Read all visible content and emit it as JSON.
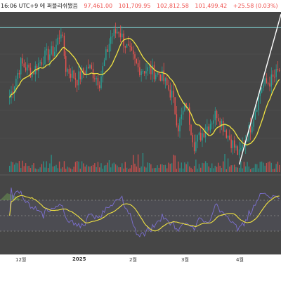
{
  "header": {
    "timestamp_text": "16:06 UTC+9 에 퍼블리쉬됐음",
    "ohlc": [
      "97,461.00",
      "101,709.95",
      "102,812.58",
      "101,499.42",
      "+25.58 (0.03%)"
    ]
  },
  "colors": {
    "background": "#464646",
    "up": "#26a69a",
    "down": "#ef5350",
    "ma": "#f1e342",
    "rsi": "#7b6fd0",
    "rsi_ma": "#f1e342",
    "trendline": "#ffffff",
    "level_line": "#7fd3d3"
  },
  "chart_data": [
    {
      "type": "candlestick",
      "title": "",
      "description_series": [
        "price",
        "moving-average"
      ],
      "x_ticks": [
        "12월",
        "2025",
        "2월",
        "3월",
        "4월"
      ],
      "y_range": [
        74000,
        110000
      ],
      "level_line_value": 106500,
      "trendline": {
        "from": {
          "x": "2025-04-07",
          "y": 76000
        },
        "to": {
          "x": "2025-05-02",
          "y": 97500
        }
      },
      "close_path": [
        {
          "d": "2024-11-15",
          "c": 91000
        },
        {
          "d": "2024-11-22",
          "c": 98500
        },
        {
          "d": "2024-11-29",
          "c": 96500
        },
        {
          "d": "2024-12-06",
          "c": 99800
        },
        {
          "d": "2024-12-13",
          "c": 101400
        },
        {
          "d": "2024-12-17",
          "c": 106000
        },
        {
          "d": "2024-12-20",
          "c": 97500
        },
        {
          "d": "2024-12-27",
          "c": 95000
        },
        {
          "d": "2025-01-03",
          "c": 97800
        },
        {
          "d": "2025-01-10",
          "c": 94500
        },
        {
          "d": "2025-01-17",
          "c": 104500
        },
        {
          "d": "2025-01-22",
          "c": 106000
        },
        {
          "d": "2025-01-27",
          "c": 102000
        },
        {
          "d": "2025-02-03",
          "c": 97500
        },
        {
          "d": "2025-02-10",
          "c": 97000
        },
        {
          "d": "2025-02-17",
          "c": 96000
        },
        {
          "d": "2025-02-24",
          "c": 91500
        },
        {
          "d": "2025-02-28",
          "c": 84500
        },
        {
          "d": "2025-03-05",
          "c": 89500
        },
        {
          "d": "2025-03-10",
          "c": 80500
        },
        {
          "d": "2025-03-17",
          "c": 84000
        },
        {
          "d": "2025-03-24",
          "c": 87500
        },
        {
          "d": "2025-03-31",
          "c": 82500
        },
        {
          "d": "2025-04-07",
          "c": 78000
        },
        {
          "d": "2025-04-14",
          "c": 84500
        },
        {
          "d": "2025-04-21",
          "c": 93500
        },
        {
          "d": "2025-04-28",
          "c": 95000
        },
        {
          "d": "2025-05-02",
          "c": 97000
        }
      ],
      "rsi_range": [
        0,
        100
      ],
      "rsi_levels": [
        70,
        50,
        30
      ]
    }
  ]
}
